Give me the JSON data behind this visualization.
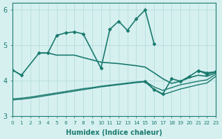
{
  "title": "",
  "xlabel": "Humidex (Indice chaleur)",
  "ylabel": "",
  "bg_color": "#d6f0f0",
  "line_color": "#1a7a6e",
  "grid_color": "#b0d8d8",
  "xlim": [
    0,
    23
  ],
  "ylim": [
    3,
    6.2
  ],
  "yticks": [
    3,
    4,
    5,
    6
  ],
  "xticks": [
    0,
    1,
    2,
    3,
    4,
    5,
    6,
    7,
    8,
    9,
    10,
    11,
    12,
    13,
    14,
    15,
    16,
    17,
    18,
    19,
    20,
    21,
    22,
    23
  ],
  "series": [
    {
      "segments": [
        {
          "x": [
            0,
            1
          ],
          "y": [
            4.3,
            4.15
          ]
        },
        {
          "x": [
            3,
            4,
            5,
            6,
            7,
            8,
            10,
            11,
            12,
            13,
            14,
            15,
            16
          ],
          "y": [
            4.78,
            4.78,
            5.28,
            5.35,
            5.38,
            5.32,
            4.35,
            5.45,
            5.68,
            5.42,
            5.75,
            6.0,
            5.05
          ]
        },
        {
          "x": [
            21,
            22,
            23
          ],
          "y": [
            4.28,
            4.22,
            4.25
          ]
        }
      ],
      "marker": "D",
      "markersize": 2.5,
      "linewidth": 1.2
    },
    {
      "segments": [
        {
          "x": [
            0,
            1,
            3,
            4,
            5,
            6,
            7,
            8,
            10,
            11,
            12,
            13,
            14,
            15,
            16,
            17,
            18,
            19,
            20,
            21,
            22,
            23
          ],
          "y": [
            4.3,
            4.15,
            4.78,
            4.78,
            4.72,
            4.72,
            4.72,
            4.65,
            4.52,
            4.5,
            4.48,
            4.45,
            4.42,
            4.38,
            4.22,
            4.05,
            3.92,
            3.98,
            4.08,
            4.15,
            4.12,
            4.22
          ]
        }
      ],
      "marker": null,
      "markersize": 0,
      "linewidth": 1.2
    },
    {
      "segments": [
        {
          "x": [
            0,
            1,
            2,
            3,
            4,
            5,
            6,
            7,
            8,
            9,
            10,
            11,
            12,
            13,
            14,
            15,
            16,
            17,
            18,
            19,
            20,
            21,
            22,
            23
          ],
          "y": [
            3.48,
            3.5,
            3.53,
            3.57,
            3.61,
            3.65,
            3.69,
            3.73,
            3.77,
            3.8,
            3.84,
            3.87,
            3.9,
            3.93,
            3.96,
            3.98,
            3.82,
            3.72,
            3.8,
            3.88,
            3.93,
            3.98,
            4.02,
            4.18
          ]
        }
      ],
      "marker": null,
      "markersize": 0,
      "linewidth": 1.0
    },
    {
      "segments": [
        {
          "x": [
            0,
            1,
            2,
            3,
            4,
            5,
            6,
            7,
            8,
            9,
            10,
            11,
            12,
            13,
            14,
            15,
            16,
            17,
            18,
            19,
            20,
            21,
            22,
            23
          ],
          "y": [
            3.45,
            3.47,
            3.5,
            3.54,
            3.58,
            3.62,
            3.66,
            3.7,
            3.74,
            3.78,
            3.82,
            3.85,
            3.88,
            3.91,
            3.94,
            3.96,
            3.74,
            3.6,
            3.68,
            3.76,
            3.82,
            3.88,
            3.93,
            4.12
          ]
        }
      ],
      "marker": null,
      "markersize": 0,
      "linewidth": 1.0
    },
    {
      "segments": [
        {
          "x": [
            15,
            16,
            17,
            18,
            19,
            20,
            21,
            22,
            23
          ],
          "y": [
            3.98,
            3.75,
            3.62,
            4.05,
            3.98,
            4.12,
            4.28,
            4.18,
            4.25
          ]
        }
      ],
      "marker": "D",
      "markersize": 2.5,
      "linewidth": 1.2
    }
  ]
}
